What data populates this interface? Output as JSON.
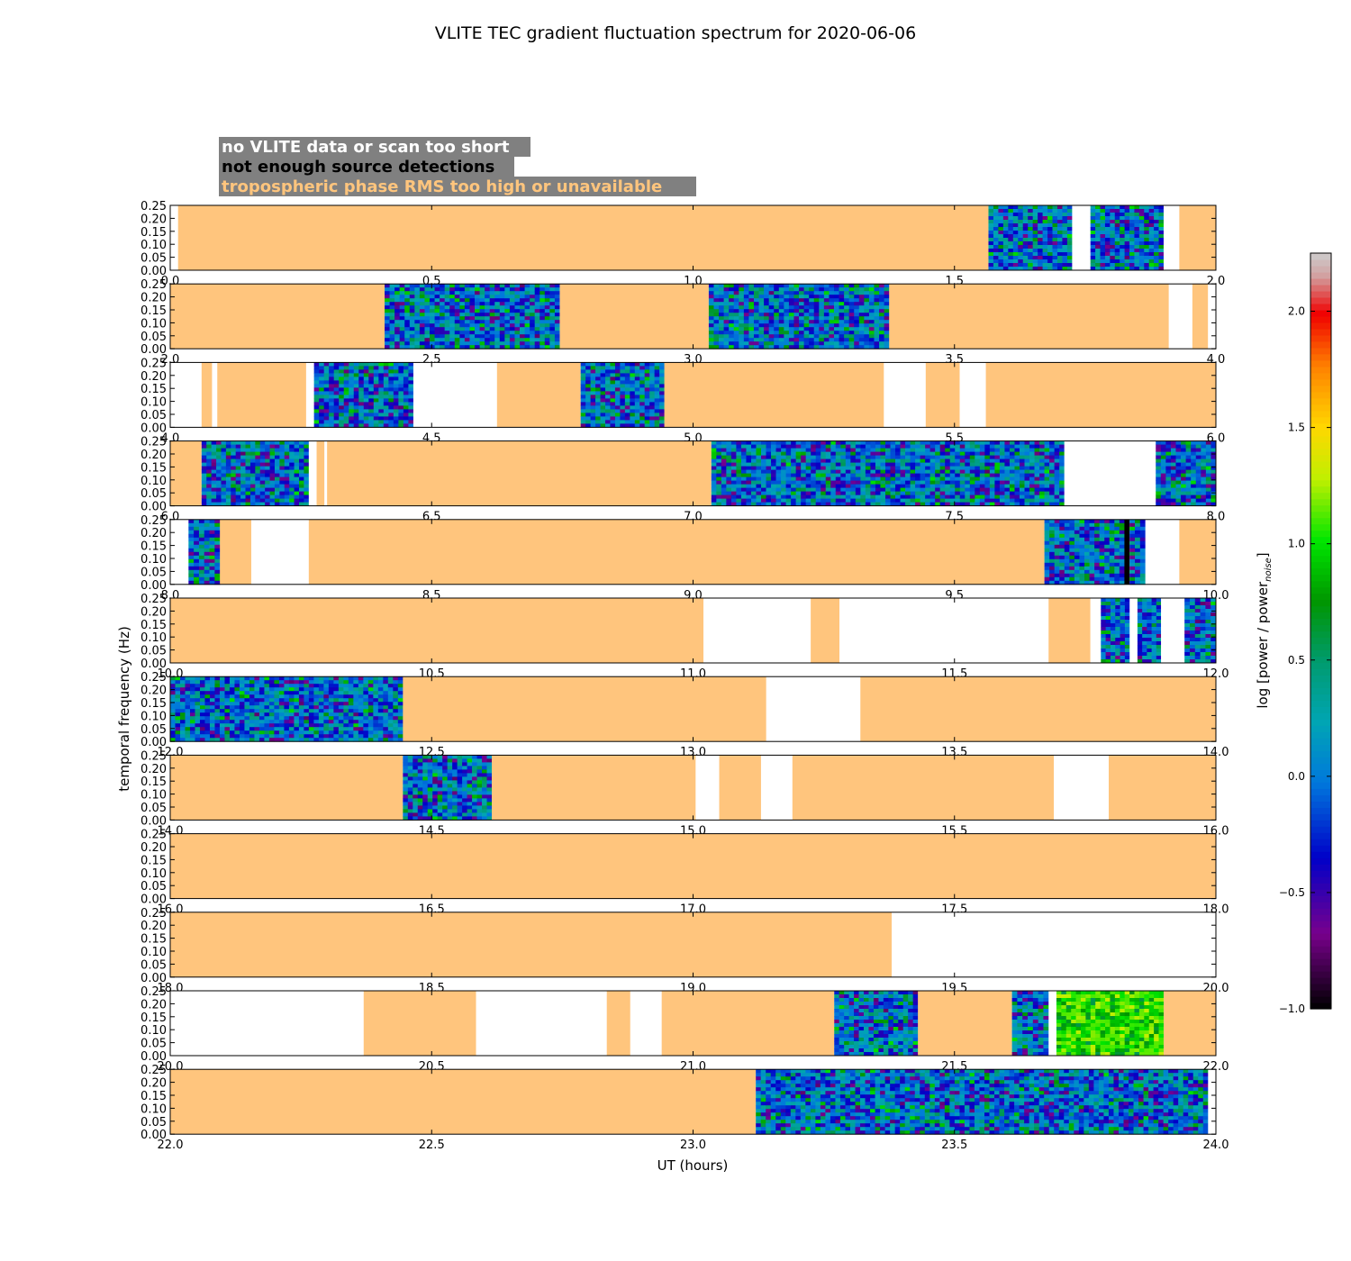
{
  "chart_data": {
    "type": "heatmap",
    "title": "VLITE TEC gradient fluctuation spectrum for 2020-06-06",
    "xlabel": "UT (hours)",
    "ylabel": "temporal frequency (Hz)",
    "ylim": [
      0,
      0.25
    ],
    "yticks": [
      "0.00",
      "0.05",
      "0.10",
      "0.15",
      "0.20",
      "0.25"
    ],
    "legend": {
      "placement": "top-left",
      "entries": [
        {
          "label": "no VLITE data or scan too short",
          "color": "#ffffff",
          "status": "nodata"
        },
        {
          "label": "not enough source detections",
          "color": "#000000",
          "status": "nodet"
        },
        {
          "label": "tropospheric phase RMS too high or unavailable",
          "color": "#ffc57d",
          "status": "trop"
        }
      ]
    },
    "colorbar": {
      "label": "log [power / power_noise]",
      "range": [
        -1.0,
        2.25
      ],
      "ticks": [
        "−1.0",
        "−0.5",
        "0.0",
        "0.5",
        "1.0",
        "1.5",
        "2.0"
      ],
      "tick_values": [
        -1.0,
        -0.5,
        0.0,
        0.5,
        1.0,
        1.5,
        2.0
      ],
      "colormap": "nipy_spectral"
    },
    "panels": [
      {
        "xlim": [
          0,
          2
        ],
        "xticks": [
          "0.0",
          "0.5",
          "1.0",
          "1.5",
          "2.0"
        ],
        "segments": [
          [
            0,
            0.015,
            "nodata"
          ],
          [
            0.015,
            1.565,
            "trop"
          ],
          [
            1.565,
            1.725,
            "data"
          ],
          [
            1.725,
            1.76,
            "nodata"
          ],
          [
            1.76,
            1.9,
            "data"
          ],
          [
            1.9,
            1.93,
            "nodata"
          ],
          [
            1.93,
            2,
            "trop"
          ]
        ]
      },
      {
        "xlim": [
          2,
          4
        ],
        "xticks": [
          "2.0",
          "2.5",
          "3.0",
          "3.5",
          "4.0"
        ],
        "segments": [
          [
            2,
            2.41,
            "trop"
          ],
          [
            2.41,
            2.745,
            "data"
          ],
          [
            2.745,
            3.03,
            "trop"
          ],
          [
            3.03,
            3.375,
            "data"
          ],
          [
            3.375,
            3.91,
            "trop"
          ],
          [
            3.91,
            3.955,
            "nodata"
          ],
          [
            3.955,
            3.985,
            "trop"
          ],
          [
            3.985,
            4,
            "nodata"
          ]
        ]
      },
      {
        "xlim": [
          4,
          6
        ],
        "xticks": [
          "4.0",
          "4.5",
          "5.0",
          "5.5",
          "6.0"
        ],
        "segments": [
          [
            4,
            4.06,
            "nodata"
          ],
          [
            4.06,
            4.08,
            "trop"
          ],
          [
            4.08,
            4.09,
            "nodata"
          ],
          [
            4.09,
            4.26,
            "trop"
          ],
          [
            4.26,
            4.275,
            "nodata"
          ],
          [
            4.275,
            4.465,
            "data"
          ],
          [
            4.465,
            4.625,
            "nodata"
          ],
          [
            4.625,
            4.785,
            "trop"
          ],
          [
            4.785,
            4.945,
            "data"
          ],
          [
            4.945,
            5.365,
            "trop"
          ],
          [
            5.365,
            5.445,
            "nodata"
          ],
          [
            5.445,
            5.51,
            "trop"
          ],
          [
            5.51,
            5.56,
            "nodata"
          ],
          [
            5.56,
            6,
            "trop"
          ]
        ]
      },
      {
        "xlim": [
          6,
          8
        ],
        "xticks": [
          "6.0",
          "6.5",
          "7.0",
          "7.5",
          "8.0"
        ],
        "segments": [
          [
            6,
            6.06,
            "trop"
          ],
          [
            6.06,
            6.265,
            "data"
          ],
          [
            6.265,
            6.28,
            "nodata"
          ],
          [
            6.28,
            6.295,
            "trop"
          ],
          [
            6.295,
            6.3,
            "nodata"
          ],
          [
            6.3,
            7.035,
            "trop"
          ],
          [
            7.035,
            7.71,
            "data"
          ],
          [
            7.71,
            7.885,
            "nodata"
          ],
          [
            7.885,
            8,
            "data"
          ]
        ]
      },
      {
        "xlim": [
          8,
          10
        ],
        "xticks": [
          "8.0",
          "8.5",
          "9.0",
          "9.5",
          "10.0"
        ],
        "segments": [
          [
            8,
            8.035,
            "nodata"
          ],
          [
            8.035,
            8.095,
            "data"
          ],
          [
            8.095,
            8.155,
            "trop"
          ],
          [
            8.155,
            8.265,
            "nodata"
          ],
          [
            8.265,
            9.672,
            "trop"
          ],
          [
            9.672,
            9.825,
            "data"
          ],
          [
            9.825,
            9.835,
            "nodet"
          ],
          [
            9.835,
            9.865,
            "data"
          ],
          [
            9.865,
            9.93,
            "nodata"
          ],
          [
            9.93,
            10,
            "trop"
          ]
        ]
      },
      {
        "xlim": [
          10,
          12
        ],
        "xticks": [
          "10.0",
          "10.5",
          "11.0",
          "11.5",
          "12.0"
        ],
        "segments": [
          [
            10,
            11.02,
            "trop"
          ],
          [
            11.02,
            11.225,
            "nodata"
          ],
          [
            11.225,
            11.28,
            "trop"
          ],
          [
            11.28,
            11.68,
            "nodata"
          ],
          [
            11.68,
            11.76,
            "trop"
          ],
          [
            11.76,
            11.78,
            "nodata"
          ],
          [
            11.78,
            11.835,
            "data"
          ],
          [
            11.835,
            11.85,
            "nodata"
          ],
          [
            11.85,
            11.895,
            "data"
          ],
          [
            11.895,
            11.94,
            "nodata"
          ],
          [
            11.94,
            12,
            "data"
          ]
        ]
      },
      {
        "xlim": [
          12,
          14
        ],
        "xticks": [
          "12.0",
          "12.5",
          "13.0",
          "13.5",
          "14.0"
        ],
        "segments": [
          [
            12,
            12.445,
            "data"
          ],
          [
            12.445,
            13.14,
            "trop"
          ],
          [
            13.14,
            13.32,
            "nodata"
          ],
          [
            13.32,
            14,
            "trop"
          ]
        ]
      },
      {
        "xlim": [
          14,
          16
        ],
        "xticks": [
          "14.0",
          "14.5",
          "15.0",
          "15.5",
          "16.0"
        ],
        "segments": [
          [
            14,
            14.445,
            "trop"
          ],
          [
            14.445,
            14.615,
            "data"
          ],
          [
            14.615,
            15.005,
            "trop"
          ],
          [
            15.005,
            15.05,
            "nodata"
          ],
          [
            15.05,
            15.13,
            "trop"
          ],
          [
            15.13,
            15.19,
            "nodata"
          ],
          [
            15.19,
            15.69,
            "trop"
          ],
          [
            15.69,
            15.795,
            "nodata"
          ],
          [
            15.795,
            16,
            "trop"
          ]
        ]
      },
      {
        "xlim": [
          16,
          18
        ],
        "xticks": [
          "16.0",
          "16.5",
          "17.0",
          "17.5",
          "18.0"
        ],
        "segments": [
          [
            16,
            18,
            "trop"
          ]
        ]
      },
      {
        "xlim": [
          18,
          20
        ],
        "xticks": [
          "18.0",
          "18.5",
          "19.0",
          "19.5",
          "20.0"
        ],
        "segments": [
          [
            18,
            19.38,
            "trop"
          ],
          [
            19.38,
            20,
            "nodata"
          ]
        ]
      },
      {
        "xlim": [
          20,
          22
        ],
        "xticks": [
          "20.0",
          "20.5",
          "21.0",
          "21.5",
          "22.0"
        ],
        "segments": [
          [
            20,
            20.37,
            "nodata"
          ],
          [
            20.37,
            20.585,
            "trop"
          ],
          [
            20.585,
            20.835,
            "nodata"
          ],
          [
            20.835,
            20.88,
            "trop"
          ],
          [
            20.88,
            20.94,
            "nodata"
          ],
          [
            20.94,
            21.27,
            "trop"
          ],
          [
            21.27,
            21.43,
            "data"
          ],
          [
            21.43,
            21.61,
            "trop"
          ],
          [
            21.61,
            21.68,
            "data"
          ],
          [
            21.68,
            21.695,
            "nodata"
          ],
          [
            21.695,
            21.9,
            "data_hot"
          ],
          [
            21.9,
            22,
            "trop"
          ]
        ]
      },
      {
        "xlim": [
          22,
          24
        ],
        "xticks": [
          "22.0",
          "22.5",
          "23.0",
          "23.5",
          "24.0"
        ],
        "segments": [
          [
            22,
            23.12,
            "trop"
          ],
          [
            23.12,
            23.985,
            "data"
          ],
          [
            23.985,
            24,
            "nodata"
          ]
        ]
      }
    ]
  }
}
